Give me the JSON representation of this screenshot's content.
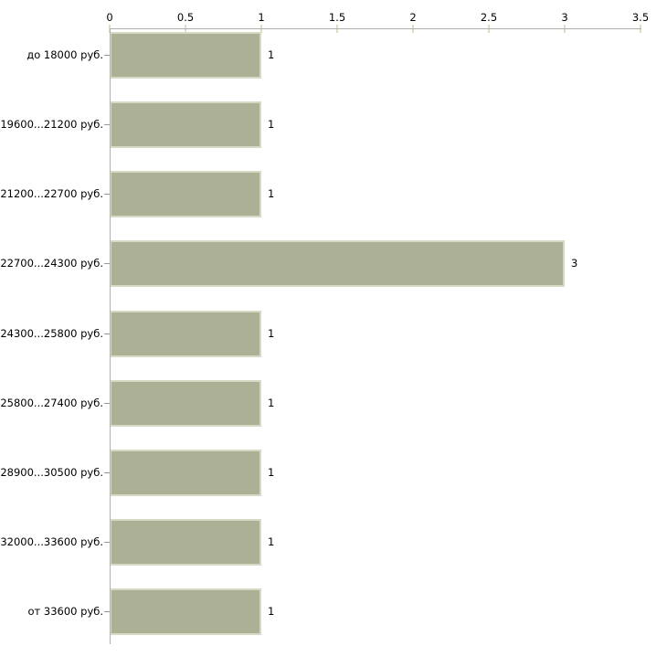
{
  "chart_data": {
    "type": "bar",
    "orientation": "horizontal",
    "title": "",
    "xlabel": "",
    "ylabel": "",
    "categories": [
      "до 18000 руб.",
      "19600...21200 руб.",
      "21200...22700 руб.",
      "22700...24300 руб.",
      "24300...25800 руб.",
      "25800...27400 руб.",
      "28900...30500 руб.",
      "32000...33600 руб.",
      "от 33600 руб."
    ],
    "values": [
      1,
      1,
      1,
      3,
      1,
      1,
      1,
      1,
      1
    ],
    "value_labels": [
      "1",
      "1",
      "1",
      "3",
      "1",
      "1",
      "1",
      "1",
      "1"
    ],
    "x_axis": {
      "position": "top",
      "min": 0,
      "max": 3.5,
      "tick_values": [
        0,
        0.5,
        1,
        1.5,
        2,
        2.5,
        3,
        3.5
      ],
      "tick_labels": [
        "0",
        "0.5",
        "1",
        "1.5",
        "2",
        "2.5",
        "3",
        "3.5"
      ]
    },
    "grid": false,
    "legend": false,
    "colors": {
      "bar_fill": "#acb195",
      "bar_border": "#d6d9c3",
      "axis_line": "#b0b0b0",
      "tick_mark": "#dcddc5",
      "category_tick": "#999999",
      "text": "#000000",
      "background": "#ffffff"
    }
  }
}
